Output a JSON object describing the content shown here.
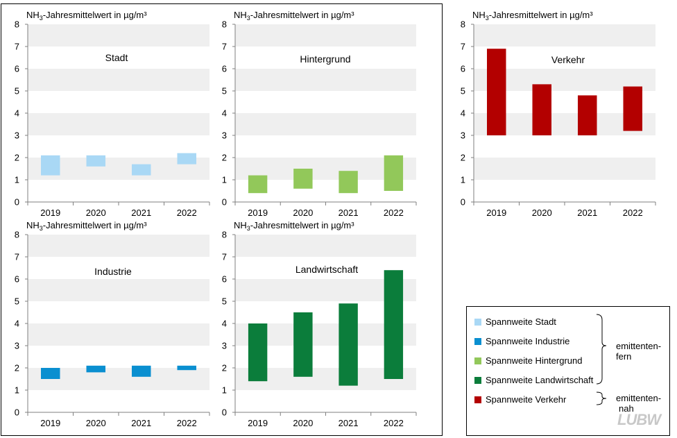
{
  "charts": [
    {
      "name": "Stadt",
      "color": "#a9d8f5",
      "categories": [
        "2019",
        "2020",
        "2021",
        "2022"
      ],
      "ranges": [
        [
          1.2,
          2.1
        ],
        [
          1.6,
          2.1
        ],
        [
          1.2,
          1.7
        ],
        [
          1.7,
          2.2
        ]
      ]
    },
    {
      "name": "Hintergrund",
      "color": "#92c85a",
      "categories": [
        "2019",
        "2020",
        "2021",
        "2022"
      ],
      "ranges": [
        [
          0.4,
          1.2
        ],
        [
          0.6,
          1.5
        ],
        [
          0.4,
          1.4
        ],
        [
          0.5,
          2.1
        ]
      ]
    },
    {
      "name": "Verkehr",
      "color": "#b30000",
      "categories": [
        "2019",
        "2020",
        "2021",
        "2022"
      ],
      "ranges": [
        [
          3.0,
          6.9
        ],
        [
          3.0,
          5.3
        ],
        [
          3.0,
          4.8
        ],
        [
          3.2,
          5.2
        ]
      ]
    },
    {
      "name": "Industrie",
      "color": "#0a8fd0",
      "categories": [
        "2019",
        "2020",
        "2021",
        "2022"
      ],
      "ranges": [
        [
          1.5,
          2.0
        ],
        [
          1.8,
          2.1
        ],
        [
          1.6,
          2.1
        ],
        [
          1.9,
          2.1
        ]
      ]
    },
    {
      "name": "Landwirtschaft",
      "color": "#0b7d3b",
      "categories": [
        "2019",
        "2020",
        "2021",
        "2022"
      ],
      "ranges": [
        [
          1.4,
          4.0
        ],
        [
          1.6,
          4.5
        ],
        [
          1.2,
          4.9
        ],
        [
          1.5,
          6.4
        ]
      ]
    }
  ],
  "chart_data": [
    {
      "type": "bar",
      "title": "Stadt",
      "ylabel": "NH3-Jahresmittelwert in µg/m³",
      "ylim": [
        0,
        8
      ],
      "categories": [
        "2019",
        "2020",
        "2021",
        "2022"
      ],
      "series": [
        {
          "name": "Spannweite Stadt",
          "low": [
            1.2,
            1.6,
            1.2,
            1.7
          ],
          "high": [
            2.1,
            2.1,
            1.7,
            2.2
          ]
        }
      ]
    },
    {
      "type": "bar",
      "title": "Hintergrund",
      "ylabel": "NH3-Jahresmittelwert in µg/m³",
      "ylim": [
        0,
        8
      ],
      "categories": [
        "2019",
        "2020",
        "2021",
        "2022"
      ],
      "series": [
        {
          "name": "Spannweite Hintergrund",
          "low": [
            0.4,
            0.6,
            0.4,
            0.5
          ],
          "high": [
            1.2,
            1.5,
            1.4,
            2.1
          ]
        }
      ]
    },
    {
      "type": "bar",
      "title": "Verkehr",
      "ylabel": "NH3-Jahresmittelwert in µg/m³",
      "ylim": [
        0,
        8
      ],
      "categories": [
        "2019",
        "2020",
        "2021",
        "2022"
      ],
      "series": [
        {
          "name": "Spannweite Verkehr",
          "low": [
            3.0,
            3.0,
            3.0,
            3.2
          ],
          "high": [
            6.9,
            5.3,
            4.8,
            5.2
          ]
        }
      ]
    },
    {
      "type": "bar",
      "title": "Industrie",
      "ylabel": "NH3-Jahresmittelwert in µg/m³",
      "ylim": [
        0,
        8
      ],
      "categories": [
        "2019",
        "2020",
        "2021",
        "2022"
      ],
      "series": [
        {
          "name": "Spannweite Industrie",
          "low": [
            1.5,
            1.8,
            1.6,
            1.9
          ],
          "high": [
            2.0,
            2.1,
            2.1,
            2.1
          ]
        }
      ]
    },
    {
      "type": "bar",
      "title": "Landwirtschaft",
      "ylabel": "NH3-Jahresmittelwert in µg/m³",
      "ylim": [
        0,
        8
      ],
      "categories": [
        "2019",
        "2020",
        "2021",
        "2022"
      ],
      "series": [
        {
          "name": "Spannweite Landwirtschaft",
          "low": [
            1.4,
            1.6,
            1.2,
            1.5
          ],
          "high": [
            4.0,
            4.5,
            4.9,
            6.4
          ]
        }
      ]
    }
  ],
  "axis": {
    "label_prefix": "NH",
    "label_sub": "3",
    "label_suffix": "-Jahresmittelwert in µg/m³",
    "ticks": [
      "0",
      "1",
      "2",
      "3",
      "4",
      "5",
      "6",
      "7",
      "8"
    ],
    "max": 8
  },
  "legend": {
    "items": [
      {
        "label": "Spannweite Stadt",
        "color": "#a9d8f5"
      },
      {
        "label": "Spannweite Industrie",
        "color": "#0a8fd0"
      },
      {
        "label": "Spannweite Hintergrund",
        "color": "#92c85a"
      },
      {
        "label": "Spannweite Landwirtschaft",
        "color": "#0b7d3b"
      },
      {
        "label": "Spannweite Verkehr",
        "color": "#b30000"
      }
    ],
    "group_far": [
      "emittenten-",
      "fern"
    ],
    "group_near": [
      "emittenten-",
      "nah"
    ]
  },
  "logo": "LUBW"
}
